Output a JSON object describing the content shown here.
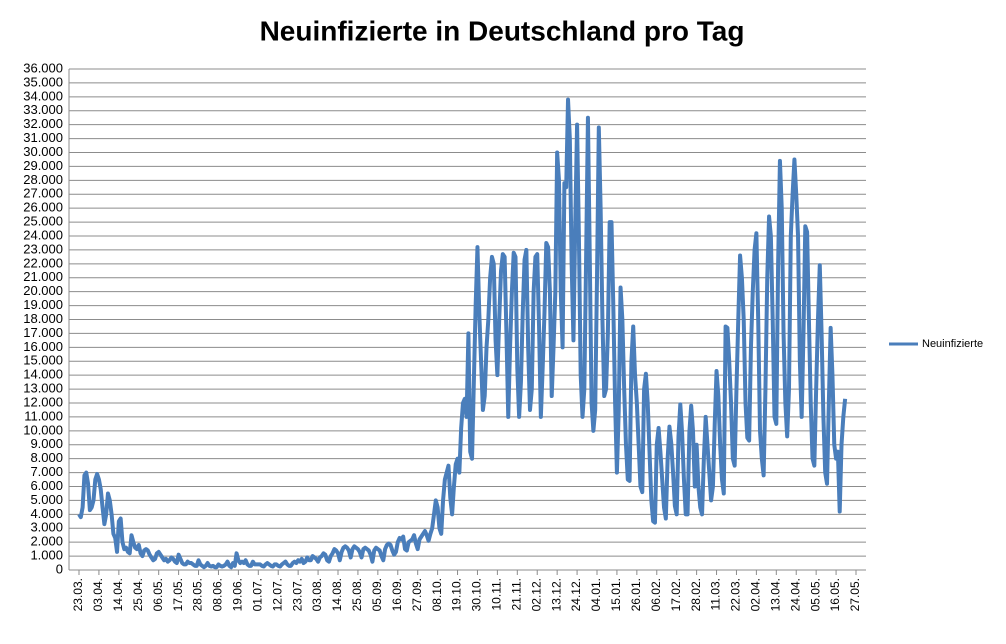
{
  "chart_data": {
    "type": "line",
    "title": "Neuinfizierte in Deutschland pro Tag",
    "categories": [
      "23.03.",
      null,
      null,
      null,
      null,
      null,
      null,
      null,
      null,
      null,
      null,
      "03.04.",
      null,
      null,
      null,
      null,
      null,
      null,
      null,
      null,
      null,
      null,
      "14.04.",
      null,
      null,
      null,
      null,
      null,
      null,
      null,
      null,
      null,
      null,
      "25.04.",
      null,
      null,
      null,
      null,
      null,
      null,
      null,
      null,
      null,
      null,
      "06.05.",
      null,
      null,
      null,
      null,
      null,
      null,
      null,
      null,
      null,
      null,
      "17.05.",
      null,
      null,
      null,
      null,
      null,
      null,
      null,
      null,
      null,
      null,
      "28.05.",
      null,
      null,
      null,
      null,
      null,
      null,
      null,
      null,
      null,
      null,
      "08.06.",
      null,
      null,
      null,
      null,
      null,
      null,
      null,
      null,
      null,
      null,
      "19.06.",
      null,
      null,
      null,
      null,
      null,
      null,
      null,
      null,
      null,
      null,
      "01.07.",
      null,
      null,
      null,
      null,
      null,
      null,
      null,
      null,
      null,
      null,
      "12.07.",
      null,
      null,
      null,
      null,
      null,
      null,
      null,
      null,
      null,
      null,
      "23.07.",
      null,
      null,
      null,
      null,
      null,
      null,
      null,
      null,
      null,
      null,
      "03.08.",
      null,
      null,
      null,
      null,
      null,
      null,
      null,
      null,
      null,
      null,
      "14.08.",
      null,
      null,
      null,
      null,
      null,
      null,
      null,
      null,
      null,
      null,
      "25.08.",
      null,
      null,
      null,
      null,
      null,
      null,
      null,
      null,
      null,
      null,
      "05.09.",
      null,
      null,
      null,
      null,
      null,
      null,
      null,
      null,
      null,
      null,
      "16.09.",
      null,
      null,
      null,
      null,
      null,
      null,
      null,
      null,
      null,
      null,
      "27.09.",
      null,
      null,
      null,
      null,
      null,
      null,
      null,
      null,
      null,
      null,
      "08.10.",
      null,
      null,
      null,
      null,
      null,
      null,
      null,
      null,
      null,
      null,
      "19.10.",
      null,
      null,
      null,
      null,
      null,
      null,
      null,
      null,
      null,
      null,
      "30.10.",
      null,
      null,
      null,
      null,
      null,
      null,
      null,
      null,
      null,
      null,
      "10.11.",
      null,
      null,
      null,
      null,
      null,
      null,
      null,
      null,
      null,
      null,
      "21.11.",
      null,
      null,
      null,
      null,
      null,
      null,
      null,
      null,
      null,
      null,
      "02.12.",
      null,
      null,
      null,
      null,
      null,
      null,
      null,
      null,
      null,
      null,
      "13.12.",
      null,
      null,
      null,
      null,
      null,
      null,
      null,
      null,
      null,
      null,
      "24.12.",
      null,
      null,
      null,
      null,
      null,
      null,
      null,
      null,
      null,
      null,
      "04.01.",
      null,
      null,
      null,
      null,
      null,
      null,
      null,
      null,
      null,
      null,
      "15.01.",
      null,
      null,
      null,
      null,
      null,
      null,
      null,
      null,
      null,
      null,
      "26.01.",
      null,
      null,
      null,
      null,
      null,
      null,
      null,
      null,
      null,
      null,
      "06.02.",
      null,
      null,
      null,
      null,
      null,
      null,
      null,
      null,
      null,
      null,
      "17.02.",
      null,
      null,
      null,
      null,
      null,
      null,
      null,
      null,
      null,
      null,
      "28.02.",
      null,
      null,
      null,
      null,
      null,
      null,
      null,
      null,
      null,
      null,
      "11.03.",
      null,
      null,
      null,
      null,
      null,
      null,
      null,
      null,
      null,
      null,
      "22.03.",
      null,
      null,
      null,
      null,
      null,
      null,
      null,
      null,
      null,
      null,
      "02.04.",
      null,
      null,
      null,
      null,
      null,
      null,
      null,
      null,
      null,
      null,
      "13.04.",
      null,
      null,
      null,
      null,
      null,
      null,
      null,
      null,
      null,
      null,
      "24.04.",
      null,
      null,
      null,
      null,
      null,
      null,
      null,
      null,
      null,
      null,
      "05.05.",
      null,
      null,
      null,
      null,
      null,
      null,
      null,
      null,
      null,
      null,
      "16.05.",
      null,
      null,
      null,
      null,
      null,
      null,
      null,
      null,
      null,
      null,
      "27.05."
    ],
    "series": [
      {
        "name": "Neuinfizierte",
        "color": "#4a7ebb",
        "values": [
          4000,
          3800,
          4500,
          6800,
          7000,
          6200,
          4300,
          4500,
          5000,
          6500,
          6900,
          6500,
          5800,
          4500,
          3300,
          4000,
          5500,
          5000,
          4000,
          2600,
          2300,
          1300,
          3500,
          3700,
          2000,
          1500,
          1600,
          1300,
          1200,
          2500,
          2000,
          1600,
          1500,
          1800,
          1200,
          1000,
          1400,
          1500,
          1400,
          1100,
          900,
          700,
          800,
          1200,
          1300,
          1100,
          900,
          700,
          800,
          600,
          700,
          900,
          800,
          600,
          500,
          1100,
          800,
          500,
          400,
          400,
          600,
          500,
          500,
          400,
          300,
          300,
          700,
          400,
          300,
          200,
          300,
          500,
          300,
          250,
          300,
          200,
          200,
          400,
          300,
          250,
          300,
          400,
          600,
          300,
          200,
          500,
          300,
          1200,
          700,
          500,
          600,
          500,
          700,
          400,
          300,
          300,
          600,
          400,
          400,
          400,
          400,
          300,
          250,
          400,
          500,
          400,
          300,
          250,
          400,
          400,
          300,
          250,
          400,
          500,
          600,
          400,
          300,
          300,
          500,
          600,
          500,
          700,
          600,
          800,
          500,
          600,
          900,
          700,
          700,
          1000,
          900,
          800,
          600,
          900,
          1000,
          1200,
          1100,
          700,
          600,
          1000,
          1200,
          1500,
          1400,
          1200,
          700,
          1300,
          1600,
          1700,
          1600,
          1400,
          900,
          1500,
          1700,
          1600,
          1500,
          1300,
          900,
          1500,
          1600,
          1500,
          1400,
          1100,
          600,
          1400,
          1600,
          1500,
          1400,
          1000,
          700,
          1500,
          1800,
          1900,
          1800,
          1400,
          1100,
          1300,
          2000,
          2300,
          2200,
          2400,
          1500,
          1400,
          2000,
          2100,
          2200,
          2500,
          1900,
          1500,
          2200,
          2400,
          2600,
          2800,
          2500,
          2100,
          2600,
          3000,
          4000,
          5000,
          4500,
          3000,
          2600,
          5000,
          6500,
          7000,
          7500,
          5200,
          4000,
          6000,
          7600,
          8000,
          7000,
          10200,
          12000,
          12300,
          11000,
          17000,
          8500,
          8000,
          13500,
          19000,
          23200,
          18500,
          15000,
          11500,
          12500,
          16000,
          18000,
          21000,
          22500,
          22000,
          16500,
          14000,
          18000,
          21500,
          22700,
          22500,
          17000,
          11000,
          16000,
          20000,
          22800,
          22500,
          14500,
          11000,
          13500,
          18500,
          22300,
          23000,
          16000,
          11500,
          13000,
          20000,
          22500,
          22700,
          17500,
          11000,
          14500,
          18500,
          23500,
          23200,
          20000,
          12500,
          16000,
          20000,
          30000,
          28000,
          20000,
          16000,
          27800,
          27500,
          33800,
          31000,
          22000,
          16500,
          25000,
          32000,
          24000,
          14000,
          11000,
          13000,
          22500,
          32500,
          22500,
          12000,
          10000,
          11500,
          21000,
          31800,
          26000,
          18000,
          12500,
          13000,
          17000,
          25000,
          25000,
          19000,
          12000,
          7000,
          11500,
          20300,
          18000,
          13000,
          9000,
          6500,
          6400,
          15000,
          17500,
          14000,
          12000,
          9000,
          6000,
          5600,
          13000,
          14100,
          12000,
          8500,
          5000,
          3500,
          3400,
          9000,
          10200,
          8500,
          6500,
          4500,
          3700,
          8000,
          10300,
          9100,
          7000,
          4600,
          4000,
          9600,
          11900,
          9800,
          6500,
          4000,
          4000,
          9900,
          11800,
          10000,
          6000,
          9000,
          6000,
          4500,
          4000,
          8000,
          11000,
          9000,
          7000,
          5000,
          6000,
          10500,
          14300,
          12500,
          9000,
          6500,
          5500,
          17500,
          17400,
          15000,
          12000,
          8000,
          7500,
          13000,
          18000,
          22600,
          21000,
          18000,
          12000,
          9500,
          9300,
          16000,
          20000,
          23000,
          24200,
          18000,
          10000,
          8000,
          6800,
          13000,
          21000,
          25400,
          24000,
          18000,
          11000,
          10500,
          22000,
          29400,
          26000,
          17000,
          12000,
          9600,
          13000,
          24000,
          27000,
          29500,
          27000,
          24000,
          15000,
          11000,
          17000,
          24700,
          24300,
          18000,
          12000,
          8000,
          7500,
          13000,
          18000,
          21900,
          17000,
          11000,
          7000,
          6200,
          12000,
          17400,
          14000,
          9000,
          8000,
          8500,
          4200,
          9000,
          11000,
          12300,
          null,
          null,
          null,
          null,
          null,
          null
        ]
      }
    ],
    "ylim": [
      0,
      36000
    ],
    "yticks": [
      0,
      {
        "value": 1000,
        "label": "1.000"
      },
      {
        "value": 2000,
        "label": "2.000"
      },
      {
        "value": 3000,
        "label": "3.000"
      },
      {
        "value": 4000,
        "label": "4.000"
      },
      {
        "value": 5000,
        "label": "5.000"
      },
      {
        "value": 6000,
        "label": "6.000"
      },
      {
        "value": 7000,
        "label": "7.000"
      },
      {
        "value": 8000,
        "label": "8.000"
      },
      {
        "value": 9000,
        "label": "9.000"
      },
      {
        "value": 10000,
        "label": "10.000"
      },
      {
        "value": 11000,
        "label": "11.000"
      },
      {
        "value": 12000,
        "label": "12.000"
      },
      {
        "value": 13000,
        "label": "13.000"
      },
      {
        "value": 14000,
        "label": "14.000"
      },
      {
        "value": 15000,
        "label": "15.000"
      },
      {
        "value": 16000,
        "label": "16.000"
      },
      {
        "value": 17000,
        "label": "17.000"
      },
      {
        "value": 18000,
        "label": "18.000"
      },
      {
        "value": 19000,
        "label": "19.000"
      },
      {
        "value": 20000,
        "label": "20.000"
      },
      {
        "value": 21000,
        "label": "21.000"
      },
      {
        "value": 22000,
        "label": "22.000"
      },
      {
        "value": 23000,
        "label": "23.000"
      },
      {
        "value": 24000,
        "label": "24.000"
      },
      {
        "value": 25000,
        "label": "25.000"
      },
      {
        "value": 26000,
        "label": "26.000"
      },
      {
        "value": 27000,
        "label": "27.000"
      },
      {
        "value": 28000,
        "label": "28.000"
      },
      {
        "value": 29000,
        "label": "29.000"
      },
      {
        "value": 30000,
        "label": "30.000"
      },
      {
        "value": 31000,
        "label": "31.000"
      },
      {
        "value": 32000,
        "label": "32.000"
      },
      {
        "value": 33000,
        "label": "33.000"
      },
      {
        "value": 34000,
        "label": "34.000"
      },
      {
        "value": 35000,
        "label": "35.000"
      },
      {
        "value": 36000,
        "label": "36.000"
      }
    ],
    "grid": true,
    "legend": "right"
  }
}
